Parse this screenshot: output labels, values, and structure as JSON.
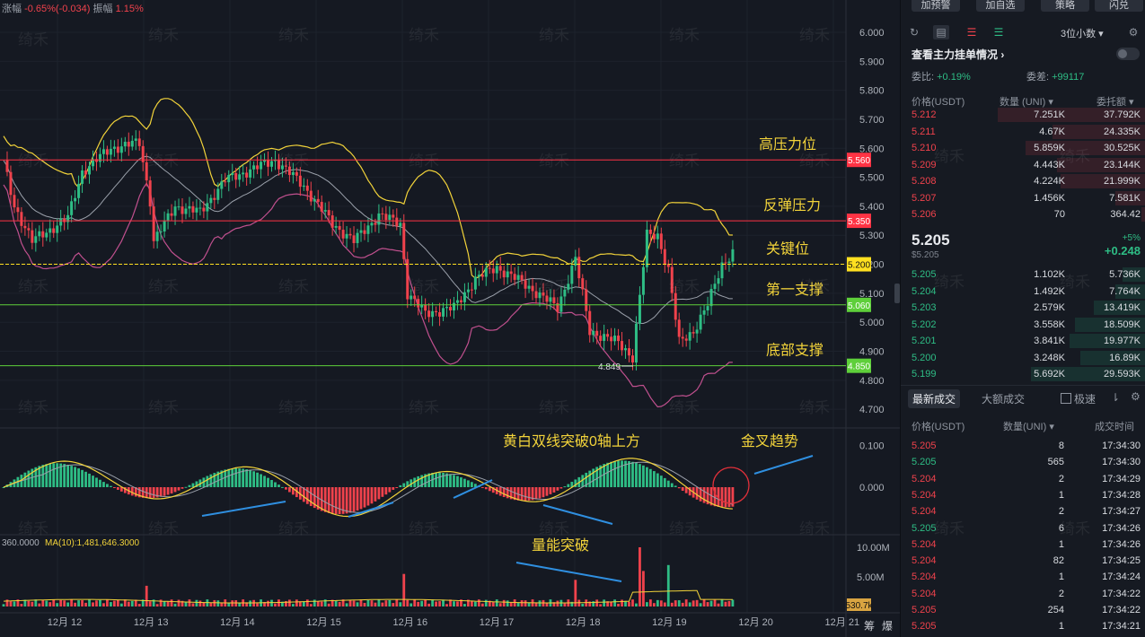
{
  "top_info": {
    "change_label": "涨幅",
    "change_value": "-0.65%(-0.034)",
    "amplitude_label": "振幅",
    "amplitude_value": "1.15%"
  },
  "watermark": "绮禾",
  "price_axis": [
    "6.000",
    "5.900",
    "5.800",
    "5.700",
    "5.600",
    "5.500",
    "5.400",
    "5.300",
    "5.200",
    "5.100",
    "5.000",
    "4.900",
    "4.800",
    "4.700"
  ],
  "macd_axis": [
    "0.100",
    "0.000"
  ],
  "volume_axis": [
    "10.00M",
    "5.00M"
  ],
  "volume_header": "360.0000",
  "volume_ma": "MA(10):1,481,646.3000",
  "volume_tag": "530.7k",
  "date_axis": [
    "12月 12",
    "12月 13",
    "12月 14",
    "12月 15",
    "12月 16",
    "12月 17",
    "12月 18",
    "12月 19",
    "12月 20",
    "12月 21"
  ],
  "axis_corner": [
    "筹",
    "爆"
  ],
  "levels": [
    {
      "label": "高压力位",
      "price": "5.560",
      "color": "#ff3344"
    },
    {
      "label": "反弹压力",
      "price": "5.350",
      "color": "#ff3344"
    },
    {
      "label": "关键位",
      "price": "5.200",
      "color": "#ffe020"
    },
    {
      "label": "第一支撑",
      "price": "5.060",
      "color": "#5ecf3a"
    },
    {
      "label": "底部支撑",
      "price": "4.850",
      "color": "#5ecf3a"
    }
  ],
  "low_marker": "4.849",
  "annotations": {
    "macd_break": "黄白双线突破0轴上方",
    "golden_cross": "金叉趋势",
    "volume_break": "量能突破"
  },
  "sidebar": {
    "buttons": [
      "加预警",
      "加自选",
      "策略",
      "闪兑"
    ],
    "precision": "3位小数",
    "order_book_title": "查看主力挂单情况",
    "ratio_label": "委比:",
    "ratio_value": "+0.19%",
    "diff_label": "委差:",
    "diff_value": "+99117",
    "columns": [
      "价格(USDT)",
      "数量 (UNI)",
      "委托额"
    ],
    "asks": [
      {
        "price": "5.212",
        "qty": "7.251K",
        "total": "37.792K",
        "fill": 0.8
      },
      {
        "price": "5.211",
        "qty": "4.67K",
        "total": "24.335K",
        "fill": 0.5
      },
      {
        "price": "5.210",
        "qty": "5.859K",
        "total": "30.525K",
        "fill": 0.65
      },
      {
        "price": "5.209",
        "qty": "4.443K",
        "total": "23.144K",
        "fill": 0.48
      },
      {
        "price": "5.208",
        "qty": "4.224K",
        "total": "21.999K",
        "fill": 0.46
      },
      {
        "price": "5.207",
        "qty": "1.456K",
        "total": "7.581K",
        "fill": 0.16
      },
      {
        "price": "5.206",
        "qty": "70",
        "total": "364.42",
        "fill": 0.02
      }
    ],
    "mid_price": "5.205",
    "mid_sub": "$5.205",
    "mid_pct": "+5%",
    "mid_change": "+0.248",
    "bids": [
      {
        "price": "5.205",
        "qty": "1.102K",
        "total": "5.736K",
        "fill": 0.12
      },
      {
        "price": "5.204",
        "qty": "1.492K",
        "total": "7.764K",
        "fill": 0.16
      },
      {
        "price": "5.203",
        "qty": "2.579K",
        "total": "13.419K",
        "fill": 0.28
      },
      {
        "price": "5.202",
        "qty": "3.558K",
        "total": "18.509K",
        "fill": 0.38
      },
      {
        "price": "5.201",
        "qty": "3.841K",
        "total": "19.977K",
        "fill": 0.41
      },
      {
        "price": "5.200",
        "qty": "3.248K",
        "total": "16.89K",
        "fill": 0.35
      },
      {
        "price": "5.199",
        "qty": "5.692K",
        "total": "29.593K",
        "fill": 0.62
      }
    ],
    "tabs": [
      "最新成交",
      "大额成交"
    ],
    "fast_label": "极速",
    "trade_columns": [
      "价格(USDT)",
      "数量(UNI)",
      "成交时间"
    ],
    "trades": [
      {
        "price": "5.205",
        "qty": "8",
        "time": "17:34:30",
        "side": "sell"
      },
      {
        "price": "5.205",
        "qty": "565",
        "time": "17:34:30",
        "side": "buy"
      },
      {
        "price": "5.204",
        "qty": "2",
        "time": "17:34:29",
        "side": "sell"
      },
      {
        "price": "5.204",
        "qty": "1",
        "time": "17:34:28",
        "side": "sell"
      },
      {
        "price": "5.204",
        "qty": "2",
        "time": "17:34:27",
        "side": "sell"
      },
      {
        "price": "5.205",
        "qty": "6",
        "time": "17:34:26",
        "side": "buy"
      },
      {
        "price": "5.204",
        "qty": "1",
        "time": "17:34:26",
        "side": "sell"
      },
      {
        "price": "5.204",
        "qty": "82",
        "time": "17:34:25",
        "side": "sell"
      },
      {
        "price": "5.204",
        "qty": "1",
        "time": "17:34:24",
        "side": "sell"
      },
      {
        "price": "5.204",
        "qty": "2",
        "time": "17:34:22",
        "side": "sell"
      },
      {
        "price": "5.205",
        "qty": "254",
        "time": "17:34:22",
        "side": "sell"
      },
      {
        "price": "5.205",
        "qty": "1",
        "time": "17:34:21",
        "side": "sell"
      }
    ]
  },
  "colors": {
    "up": "#2ebd85",
    "down": "#f0424c",
    "yellow": "#f2d33a",
    "purple": "#c0508e",
    "grey": "#9aa0aa"
  }
}
